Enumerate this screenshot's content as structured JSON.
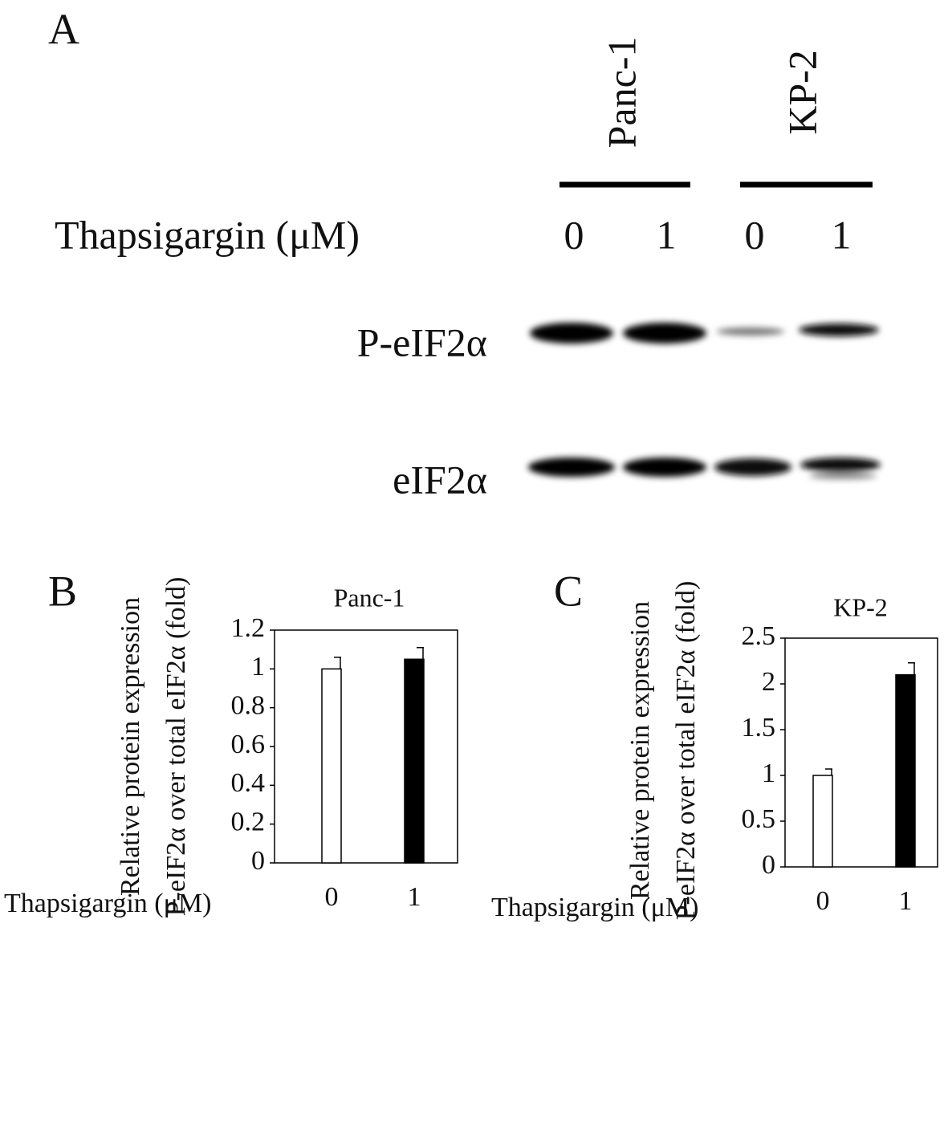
{
  "blot": {
    "panel": "A",
    "cell_lines": [
      "Panc-1",
      "KP-2"
    ],
    "treatment_label": "Thapsigargin (μM)",
    "doses": [
      "0",
      "1",
      "0",
      "1"
    ],
    "rows": [
      "P-eIF2α",
      "eIF2α"
    ]
  },
  "chart_data": [
    {
      "type": "bar",
      "panel": "B",
      "title": "Panc-1",
      "ylabel": [
        "Relative protein expression",
        "P-eIF2α over total eIF2α (fold)"
      ],
      "xlabel": "Thapsigargin (μM)",
      "categories": [
        "0",
        "1"
      ],
      "values": [
        1.0,
        1.05
      ],
      "errors": [
        0.06,
        0.06
      ],
      "colors": [
        "#ffffff",
        "#000000"
      ],
      "ylim": [
        0,
        1.2
      ],
      "yticks": [
        0,
        0.2,
        0.4,
        0.6,
        0.8,
        1,
        1.2
      ]
    },
    {
      "type": "bar",
      "panel": "C",
      "title": "KP-2",
      "ylabel": [
        "Relative protein expression",
        "P-eIF2α over total eIF2α (fold)"
      ],
      "xlabel": "Thapsigargin (μM)",
      "categories": [
        "0",
        "1"
      ],
      "values": [
        1.0,
        2.1
      ],
      "errors": [
        0.07,
        0.13
      ],
      "colors": [
        "#ffffff",
        "#000000"
      ],
      "ylim": [
        0,
        2.5
      ],
      "yticks": [
        0,
        0.5,
        1,
        1.5,
        2,
        2.5
      ]
    }
  ]
}
